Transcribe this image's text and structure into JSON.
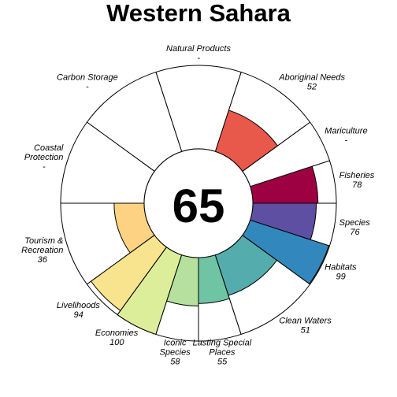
{
  "chart_data": {
    "type": "flower",
    "title": "Western Sahara",
    "overall_score": "65",
    "max_value": 100,
    "petals": [
      {
        "name": "Fisheries",
        "label_lines": [
          "Fisheries"
        ],
        "value": 78,
        "display": "78",
        "color": "#9E0142",
        "weight": 1
      },
      {
        "name": "Mariculture",
        "label_lines": [
          "Mariculture"
        ],
        "value": null,
        "display": "-",
        "color": "#D53E4F",
        "weight": 1
      },
      {
        "name": "Aboriginal Needs",
        "label_lines": [
          "Aboriginal Needs"
        ],
        "value": 52,
        "display": "52",
        "color": "#E8584B",
        "weight": 2
      },
      {
        "name": "Natural Products",
        "label_lines": [
          "Natural Products"
        ],
        "value": null,
        "display": "-",
        "color": "#F46D43",
        "weight": 2
      },
      {
        "name": "Carbon Storage",
        "label_lines": [
          "Carbon Storage"
        ],
        "value": null,
        "display": "-",
        "color": "#FDAE61",
        "weight": 2
      },
      {
        "name": "Coastal Protection",
        "label_lines": [
          "Coastal",
          "Protection"
        ],
        "value": null,
        "display": "-",
        "color": "#FDC067",
        "weight": 2
      },
      {
        "name": "Tourism & Recreation",
        "label_lines": [
          "Tourism &",
          "Recreation"
        ],
        "value": 36,
        "display": "36",
        "color": "#FDD282",
        "weight": 2
      },
      {
        "name": "Livelihoods",
        "label_lines": [
          "Livelihoods"
        ],
        "value": 94,
        "display": "94",
        "color": "#F8E38E",
        "weight": 1
      },
      {
        "name": "Economies",
        "label_lines": [
          "Economies"
        ],
        "value": 100,
        "display": "100",
        "color": "#DCEE9A",
        "weight": 1
      },
      {
        "name": "Iconic Species",
        "label_lines": [
          "Iconic",
          "Species"
        ],
        "value": 58,
        "display": "58",
        "color": "#B5E09D",
        "weight": 1
      },
      {
        "name": "Lasting Special Places",
        "label_lines": [
          "Lasting Special",
          "Places"
        ],
        "value": 55,
        "display": "55",
        "color": "#6FC4A3",
        "weight": 1
      },
      {
        "name": "Clean Waters",
        "label_lines": [
          "Clean Waters"
        ],
        "value": 51,
        "display": "51",
        "color": "#54ADAC",
        "weight": 2
      },
      {
        "name": "Habitats",
        "label_lines": [
          "Habitats"
        ],
        "value": 99,
        "display": "99",
        "color": "#3288BD",
        "weight": 1
      },
      {
        "name": "Species",
        "label_lines": [
          "Species"
        ],
        "value": 76,
        "display": "76",
        "color": "#5E4FA2",
        "weight": 1
      }
    ]
  }
}
